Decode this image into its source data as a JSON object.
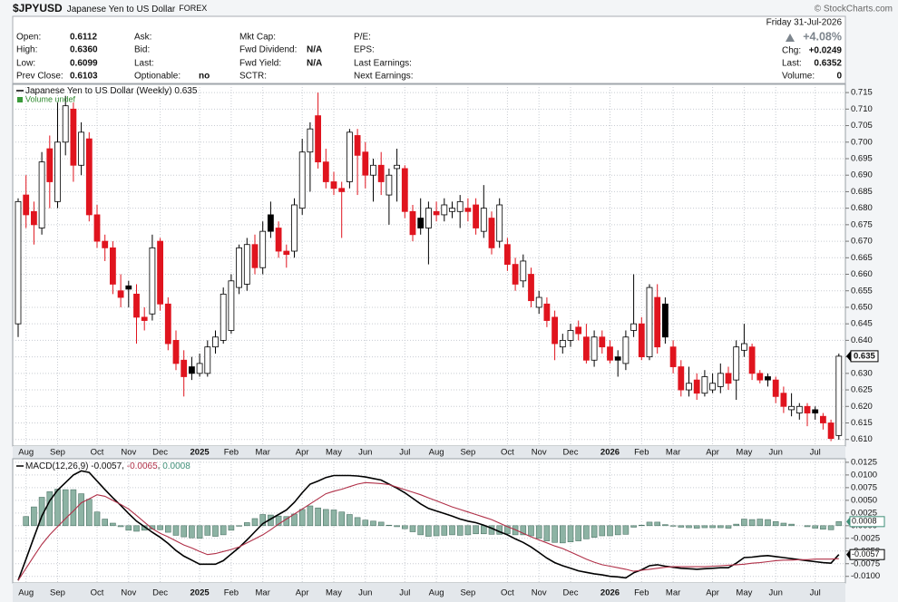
{
  "header": {
    "ticker": "$JPYUSD",
    "name": "Japanese Yen to US Dollar",
    "exchange": "FOREX",
    "source": "© StockCharts.com",
    "date": "Friday 31-Jul-2026",
    "change_pct": "+4.08%",
    "columns": [
      [
        {
          "label": "Open:",
          "value": "0.6112"
        },
        {
          "label": "High:",
          "value": "0.6360"
        },
        {
          "label": "Low:",
          "value": "0.6099"
        },
        {
          "label": "Prev Close:",
          "value": "0.6103"
        }
      ],
      [
        {
          "label": "Ask:"
        },
        {
          "label": "Bid:"
        },
        {
          "label": "Last:"
        },
        {
          "label": "Optionable:",
          "value": "no"
        }
      ],
      [
        {
          "label": "Mkt Cap:"
        },
        {
          "label": "Fwd Dividend:",
          "value": "N/A"
        },
        {
          "label": "Fwd Yield:",
          "value": "N/A"
        },
        {
          "label": "SCTR:"
        }
      ],
      [
        {
          "label": "P/E:"
        },
        {
          "label": "EPS:"
        },
        {
          "label": "Last Earnings:"
        },
        {
          "label": "Next Earnings:"
        }
      ]
    ],
    "summary": [
      {
        "label": "Chg:",
        "value": "+0.0249"
      },
      {
        "label": "Last:",
        "value": "0.6352"
      },
      {
        "label": "Volume:",
        "value": "0"
      }
    ]
  },
  "chart_data": [
    {
      "type": "candlestick",
      "title": "Japanese Yen to US Dollar (Weekly)",
      "last_value_label": "0.635",
      "volume_label": "Volume undef",
      "categories": [
        null,
        "Aug",
        null,
        null,
        null,
        "Sep",
        null,
        null,
        null,
        null,
        "Oct",
        null,
        null,
        null,
        "Nov",
        null,
        null,
        null,
        "Dec",
        null,
        null,
        null,
        null,
        "2025",
        null,
        null,
        null,
        "Feb",
        null,
        null,
        null,
        "Mar",
        null,
        null,
        null,
        null,
        "Apr",
        null,
        null,
        null,
        "May",
        null,
        null,
        null,
        "Jun",
        null,
        null,
        null,
        null,
        "Jul",
        null,
        null,
        null,
        "Aug",
        null,
        null,
        null,
        "Sep",
        null,
        null,
        null,
        null,
        "Oct",
        null,
        null,
        null,
        "Nov",
        null,
        null,
        null,
        "Dec",
        null,
        null,
        null,
        null,
        "2026",
        null,
        null,
        null,
        "Feb",
        null,
        null,
        null,
        "Mar",
        null,
        null,
        null,
        null,
        "Apr",
        null,
        null,
        null,
        "May",
        null,
        null,
        null,
        "Jun",
        null,
        null,
        null,
        null,
        "Jul",
        null,
        null,
        null
      ],
      "open": [
        0.645,
        0.684,
        0.679,
        0.674,
        0.698,
        0.682,
        0.7,
        0.71,
        0.693,
        0.701,
        0.678,
        0.67,
        0.668,
        0.655,
        0.6565,
        0.654,
        0.647,
        0.648,
        0.67,
        0.651,
        0.64,
        0.634,
        0.632,
        0.63,
        0.63,
        0.638,
        0.64,
        0.643,
        0.656,
        0.657,
        0.669,
        0.662,
        0.678,
        0.674,
        0.667,
        0.667,
        0.68,
        0.697,
        0.708,
        0.694,
        0.688,
        0.686,
        0.688,
        0.702,
        0.697,
        0.69,
        0.693,
        0.684,
        0.692,
        0.692,
        0.679,
        0.677,
        0.674,
        0.679,
        0.678,
        0.679,
        0.679,
        0.68,
        0.681,
        0.673,
        0.677,
        0.67,
        0.669,
        0.663,
        0.658,
        0.66,
        0.65,
        0.651,
        0.647,
        0.638,
        0.64,
        0.644,
        0.641,
        0.634,
        0.641,
        0.638,
        0.635,
        0.633,
        0.643,
        0.645,
        0.635,
        0.653,
        0.651,
        0.638,
        0.632,
        0.625,
        0.628,
        0.624,
        0.625,
        0.626,
        0.63,
        0.628,
        0.637,
        0.638,
        0.63,
        0.629,
        0.628,
        0.624,
        0.619,
        0.618,
        0.62,
        0.619,
        0.617,
        0.615,
        0.6112
      ],
      "high": [
        0.683,
        0.69,
        0.682,
        0.697,
        0.702,
        0.712,
        0.714,
        0.712,
        0.706,
        0.703,
        0.681,
        0.672,
        0.67,
        0.66,
        0.658,
        0.657,
        0.65,
        0.672,
        0.671,
        0.653,
        0.643,
        0.637,
        0.635,
        0.636,
        0.64,
        0.643,
        0.656,
        0.66,
        0.669,
        0.671,
        0.672,
        0.676,
        0.682,
        0.676,
        0.669,
        0.683,
        0.701,
        0.706,
        0.715,
        0.698,
        0.691,
        0.688,
        0.704,
        0.704,
        0.7,
        0.695,
        0.697,
        0.692,
        0.698,
        0.693,
        0.681,
        0.683,
        0.682,
        0.682,
        0.683,
        0.682,
        0.684,
        0.683,
        0.683,
        0.687,
        0.679,
        0.683,
        0.671,
        0.665,
        0.666,
        0.662,
        0.655,
        0.653,
        0.649,
        0.642,
        0.645,
        0.646,
        0.645,
        0.643,
        0.643,
        0.64,
        0.637,
        0.643,
        0.66,
        0.647,
        0.657,
        0.657,
        0.653,
        0.64,
        0.634,
        0.632,
        0.63,
        0.631,
        0.63,
        0.633,
        0.632,
        0.64,
        0.645,
        0.639,
        0.631,
        0.63,
        0.629,
        0.626,
        0.624,
        0.621,
        0.621,
        0.62,
        0.618,
        0.616,
        0.636
      ],
      "low": [
        0.641,
        0.674,
        0.669,
        0.672,
        0.68,
        0.68,
        0.696,
        0.688,
        0.69,
        0.676,
        0.668,
        0.664,
        0.654,
        0.65,
        0.65,
        0.639,
        0.643,
        0.646,
        0.649,
        0.637,
        0.631,
        0.623,
        0.628,
        0.629,
        0.629,
        0.636,
        0.639,
        0.642,
        0.654,
        0.655,
        0.66,
        0.66,
        0.671,
        0.665,
        0.662,
        0.665,
        0.678,
        0.685,
        0.692,
        0.686,
        0.684,
        0.671,
        0.686,
        0.684,
        0.686,
        0.682,
        0.684,
        0.675,
        0.682,
        0.677,
        0.67,
        0.672,
        0.663,
        0.676,
        0.676,
        0.677,
        0.674,
        0.676,
        0.672,
        0.671,
        0.666,
        0.668,
        0.661,
        0.655,
        0.656,
        0.65,
        0.648,
        0.644,
        0.634,
        0.636,
        0.638,
        0.64,
        0.633,
        0.632,
        0.636,
        0.633,
        0.629,
        0.631,
        0.641,
        0.634,
        0.634,
        0.636,
        0.639,
        0.63,
        0.623,
        0.623,
        0.622,
        0.623,
        0.624,
        0.624,
        0.625,
        0.622,
        0.635,
        0.628,
        0.627,
        0.626,
        0.621,
        0.618,
        0.617,
        0.616,
        0.614,
        0.616,
        0.613,
        0.6095,
        0.6099
      ],
      "close": [
        0.682,
        0.678,
        0.675,
        0.694,
        0.688,
        0.7,
        0.711,
        0.693,
        0.703,
        0.678,
        0.67,
        0.668,
        0.657,
        0.653,
        0.6555,
        0.647,
        0.646,
        0.668,
        0.651,
        0.639,
        0.633,
        0.629,
        0.63,
        0.633,
        0.638,
        0.641,
        0.654,
        0.658,
        0.668,
        0.669,
        0.662,
        0.673,
        0.673,
        0.667,
        0.666,
        0.681,
        0.697,
        0.704,
        0.694,
        0.688,
        0.686,
        0.685,
        0.703,
        0.696,
        0.69,
        0.693,
        0.688,
        0.69,
        0.693,
        0.679,
        0.672,
        0.674,
        0.68,
        0.678,
        0.681,
        0.68,
        0.682,
        0.679,
        0.674,
        0.68,
        0.668,
        0.681,
        0.663,
        0.657,
        0.664,
        0.652,
        0.653,
        0.646,
        0.639,
        0.64,
        0.643,
        0.642,
        0.634,
        0.641,
        0.638,
        0.634,
        0.634,
        0.641,
        0.645,
        0.635,
        0.656,
        0.638,
        0.641,
        0.632,
        0.625,
        0.627,
        0.624,
        0.629,
        0.627,
        0.63,
        0.627,
        0.638,
        0.639,
        0.63,
        0.628,
        0.628,
        0.623,
        0.62,
        0.62,
        0.62,
        0.618,
        0.618,
        0.615,
        0.6103,
        0.6352
      ],
      "up_color": "#000000",
      "down_color": "#e0141e",
      "unchanged_color": "#000000",
      "ylim": [
        0.608,
        0.7175
      ],
      "yticks": [
        {
          "value": 0.61,
          "label": "0.610"
        },
        0.615,
        {
          "value": 0.62,
          "label": "0.620"
        },
        0.625,
        {
          "value": 0.63,
          "label": "0.630"
        },
        0.635,
        {
          "value": 0.64,
          "label": "0.640"
        },
        0.645,
        {
          "value": 0.65,
          "label": "0.650"
        },
        0.655,
        {
          "value": 0.66,
          "label": "0.660"
        },
        0.665,
        {
          "value": 0.67,
          "label": "0.670"
        },
        0.675,
        {
          "value": 0.68,
          "label": "0.680"
        },
        0.685,
        {
          "value": 0.69,
          "label": "0.690"
        },
        0.695,
        {
          "value": 0.7,
          "label": "0.700"
        },
        0.705,
        {
          "value": 0.71,
          "label": "0.710"
        },
        0.715
      ],
      "grid": true
    },
    {
      "type": "macd",
      "title": "MACD(12,26,9)",
      "series": [
        {
          "type": "line",
          "color": "#000000",
          "values": [
            -0.0108,
            -0.0066,
            -0.0023,
            0.0019,
            0.0049,
            0.007,
            0.0085,
            0.01,
            0.0108,
            0.0105,
            0.0088,
            0.0071,
            0.0055,
            0.004,
            0.0024,
            0.0009,
            -0.0002,
            -0.0013,
            -0.0023,
            -0.0035,
            -0.0049,
            -0.006,
            -0.0068,
            -0.0076,
            -0.0076,
            -0.0076,
            -0.0069,
            -0.0056,
            -0.0043,
            -0.0028,
            -0.0012,
            0.0004,
            0.0013,
            0.0022,
            0.0031,
            0.0046,
            0.0065,
            0.0082,
            0.0088,
            0.0095,
            0.0099,
            0.0099,
            0.0099,
            0.0098,
            0.0096,
            0.0093,
            0.009,
            0.0082,
            0.0074,
            0.0065,
            0.0054,
            0.0043,
            0.0034,
            0.0029,
            0.0024,
            0.0019,
            0.0013,
            0.0009,
            0.0006,
            0.0001,
            -0.0005,
            -0.0012,
            -0.0018,
            -0.0026,
            -0.0033,
            -0.0042,
            -0.0053,
            -0.0064,
            -0.0073,
            -0.0079,
            -0.0084,
            -0.0089,
            -0.0092,
            -0.0095,
            -0.0097,
            -0.01,
            -0.0101,
            -0.0103,
            -0.0093,
            -0.0087,
            -0.0079,
            -0.0077,
            -0.008,
            -0.0082,
            -0.0084,
            -0.0085,
            -0.0086,
            -0.0085,
            -0.0084,
            -0.0083,
            -0.0083,
            -0.0074,
            -0.0063,
            -0.0062,
            -0.006,
            -0.0059,
            -0.0061,
            -0.0063,
            -0.0065,
            -0.0067,
            -0.0069,
            -0.0071,
            -0.0073,
            -0.0074,
            -0.0057
          ]
        },
        {
          "type": "line",
          "color": "#b03048",
          "values": [
            -0.0108,
            -0.0084,
            -0.006,
            -0.0037,
            -0.0018,
            -0.0002,
            0.0014,
            0.0029,
            0.0045,
            0.0053,
            0.0061,
            0.0058,
            0.005,
            0.0042,
            0.0033,
            0.002,
            0.0007,
            -0.0006,
            -0.0015,
            -0.0022,
            -0.003,
            -0.0038,
            -0.0044,
            -0.0051,
            -0.0057,
            -0.0055,
            -0.0051,
            -0.0047,
            -0.0042,
            -0.0034,
            -0.0026,
            -0.0018,
            -0.0008,
            0.0003,
            0.0013,
            0.0023,
            0.0033,
            0.0043,
            0.0053,
            0.0063,
            0.0068,
            0.0072,
            0.0077,
            0.0082,
            0.0085,
            0.0084,
            0.0083,
            0.0081,
            0.0076,
            0.0071,
            0.0066,
            0.0061,
            0.0055,
            0.0049,
            0.0043,
            0.0037,
            0.0032,
            0.0027,
            0.0022,
            0.0017,
            0.0012,
            0.0005,
            -0.0002,
            -0.0008,
            -0.0015,
            -0.0022,
            -0.0028,
            -0.0034,
            -0.004,
            -0.0045,
            -0.0052,
            -0.0059,
            -0.0066,
            -0.0072,
            -0.0077,
            -0.008,
            -0.0083,
            -0.0086,
            -0.009,
            -0.0088,
            -0.0086,
            -0.0084,
            -0.0082,
            -0.0081,
            -0.0081,
            -0.0081,
            -0.0081,
            -0.0081,
            -0.008,
            -0.0079,
            -0.0078,
            -0.0077,
            -0.0076,
            -0.0074,
            -0.0073,
            -0.0071,
            -0.0069,
            -0.0068,
            -0.0068,
            -0.0067,
            -0.0067,
            -0.0066,
            -0.0066,
            -0.0066,
            -0.0065
          ]
        },
        {
          "type": "bar",
          "color": "#8db3a4",
          "values": [
            0,
            0.0018,
            0.0037,
            0.0056,
            0.0067,
            0.0072,
            0.0071,
            0.0071,
            0.0063,
            0.0052,
            0.0027,
            0.0013,
            0.0005,
            -0.0002,
            -0.0009,
            -0.0011,
            -0.0009,
            -0.0007,
            -0.0008,
            -0.0013,
            -0.0019,
            -0.0022,
            -0.0024,
            -0.0025,
            -0.0019,
            -0.0021,
            -0.0018,
            -0.0009,
            -0.0001,
            0.0006,
            0.0014,
            0.0022,
            0.0021,
            0.0019,
            0.0018,
            0.0023,
            0.0032,
            0.0039,
            0.0035,
            0.0032,
            0.0031,
            0.0027,
            0.0022,
            0.0016,
            0.0011,
            0.0009,
            0.0007,
            0.0001,
            -0.0002,
            -0.0006,
            -0.0012,
            -0.0018,
            -0.0021,
            -0.002,
            -0.0019,
            -0.0018,
            -0.0019,
            -0.0018,
            -0.0016,
            -0.0016,
            -0.0017,
            -0.0017,
            -0.0016,
            -0.0018,
            -0.0018,
            -0.002,
            -0.0025,
            -0.003,
            -0.0033,
            -0.0034,
            -0.0032,
            -0.003,
            -0.0026,
            -0.0023,
            -0.002,
            -0.002,
            -0.0018,
            -0.0017,
            -0.0003,
            0.0001,
            0.0007,
            0.0007,
            0.0002,
            -0.0001,
            -0.0003,
            -0.0004,
            -0.0005,
            -0.0004,
            -0.0004,
            -0.0004,
            -0.0005,
            0.0003,
            0.0013,
            0.0012,
            0.0013,
            0.0012,
            0.0008,
            0.0005,
            0.0003,
            0,
            -0.0002,
            -0.0005,
            -0.0007,
            -0.0008,
            0.0008
          ]
        }
      ],
      "ylim": [
        -0.0113,
        0.0132
      ],
      "yticks": [
        0.0125,
        {
          "value": 0.01,
          "label": "0.0100"
        },
        0.0075,
        {
          "value": 0.005,
          "label": "0.0050"
        },
        0.0025,
        {
          "value": 0,
          "label": "0.0000"
        },
        -0.0025,
        {
          "value": -0.005,
          "label": "-0.0050"
        },
        -0.0075,
        {
          "value": -0.01,
          "label": "-0.0100"
        }
      ],
      "grid": true
    }
  ]
}
